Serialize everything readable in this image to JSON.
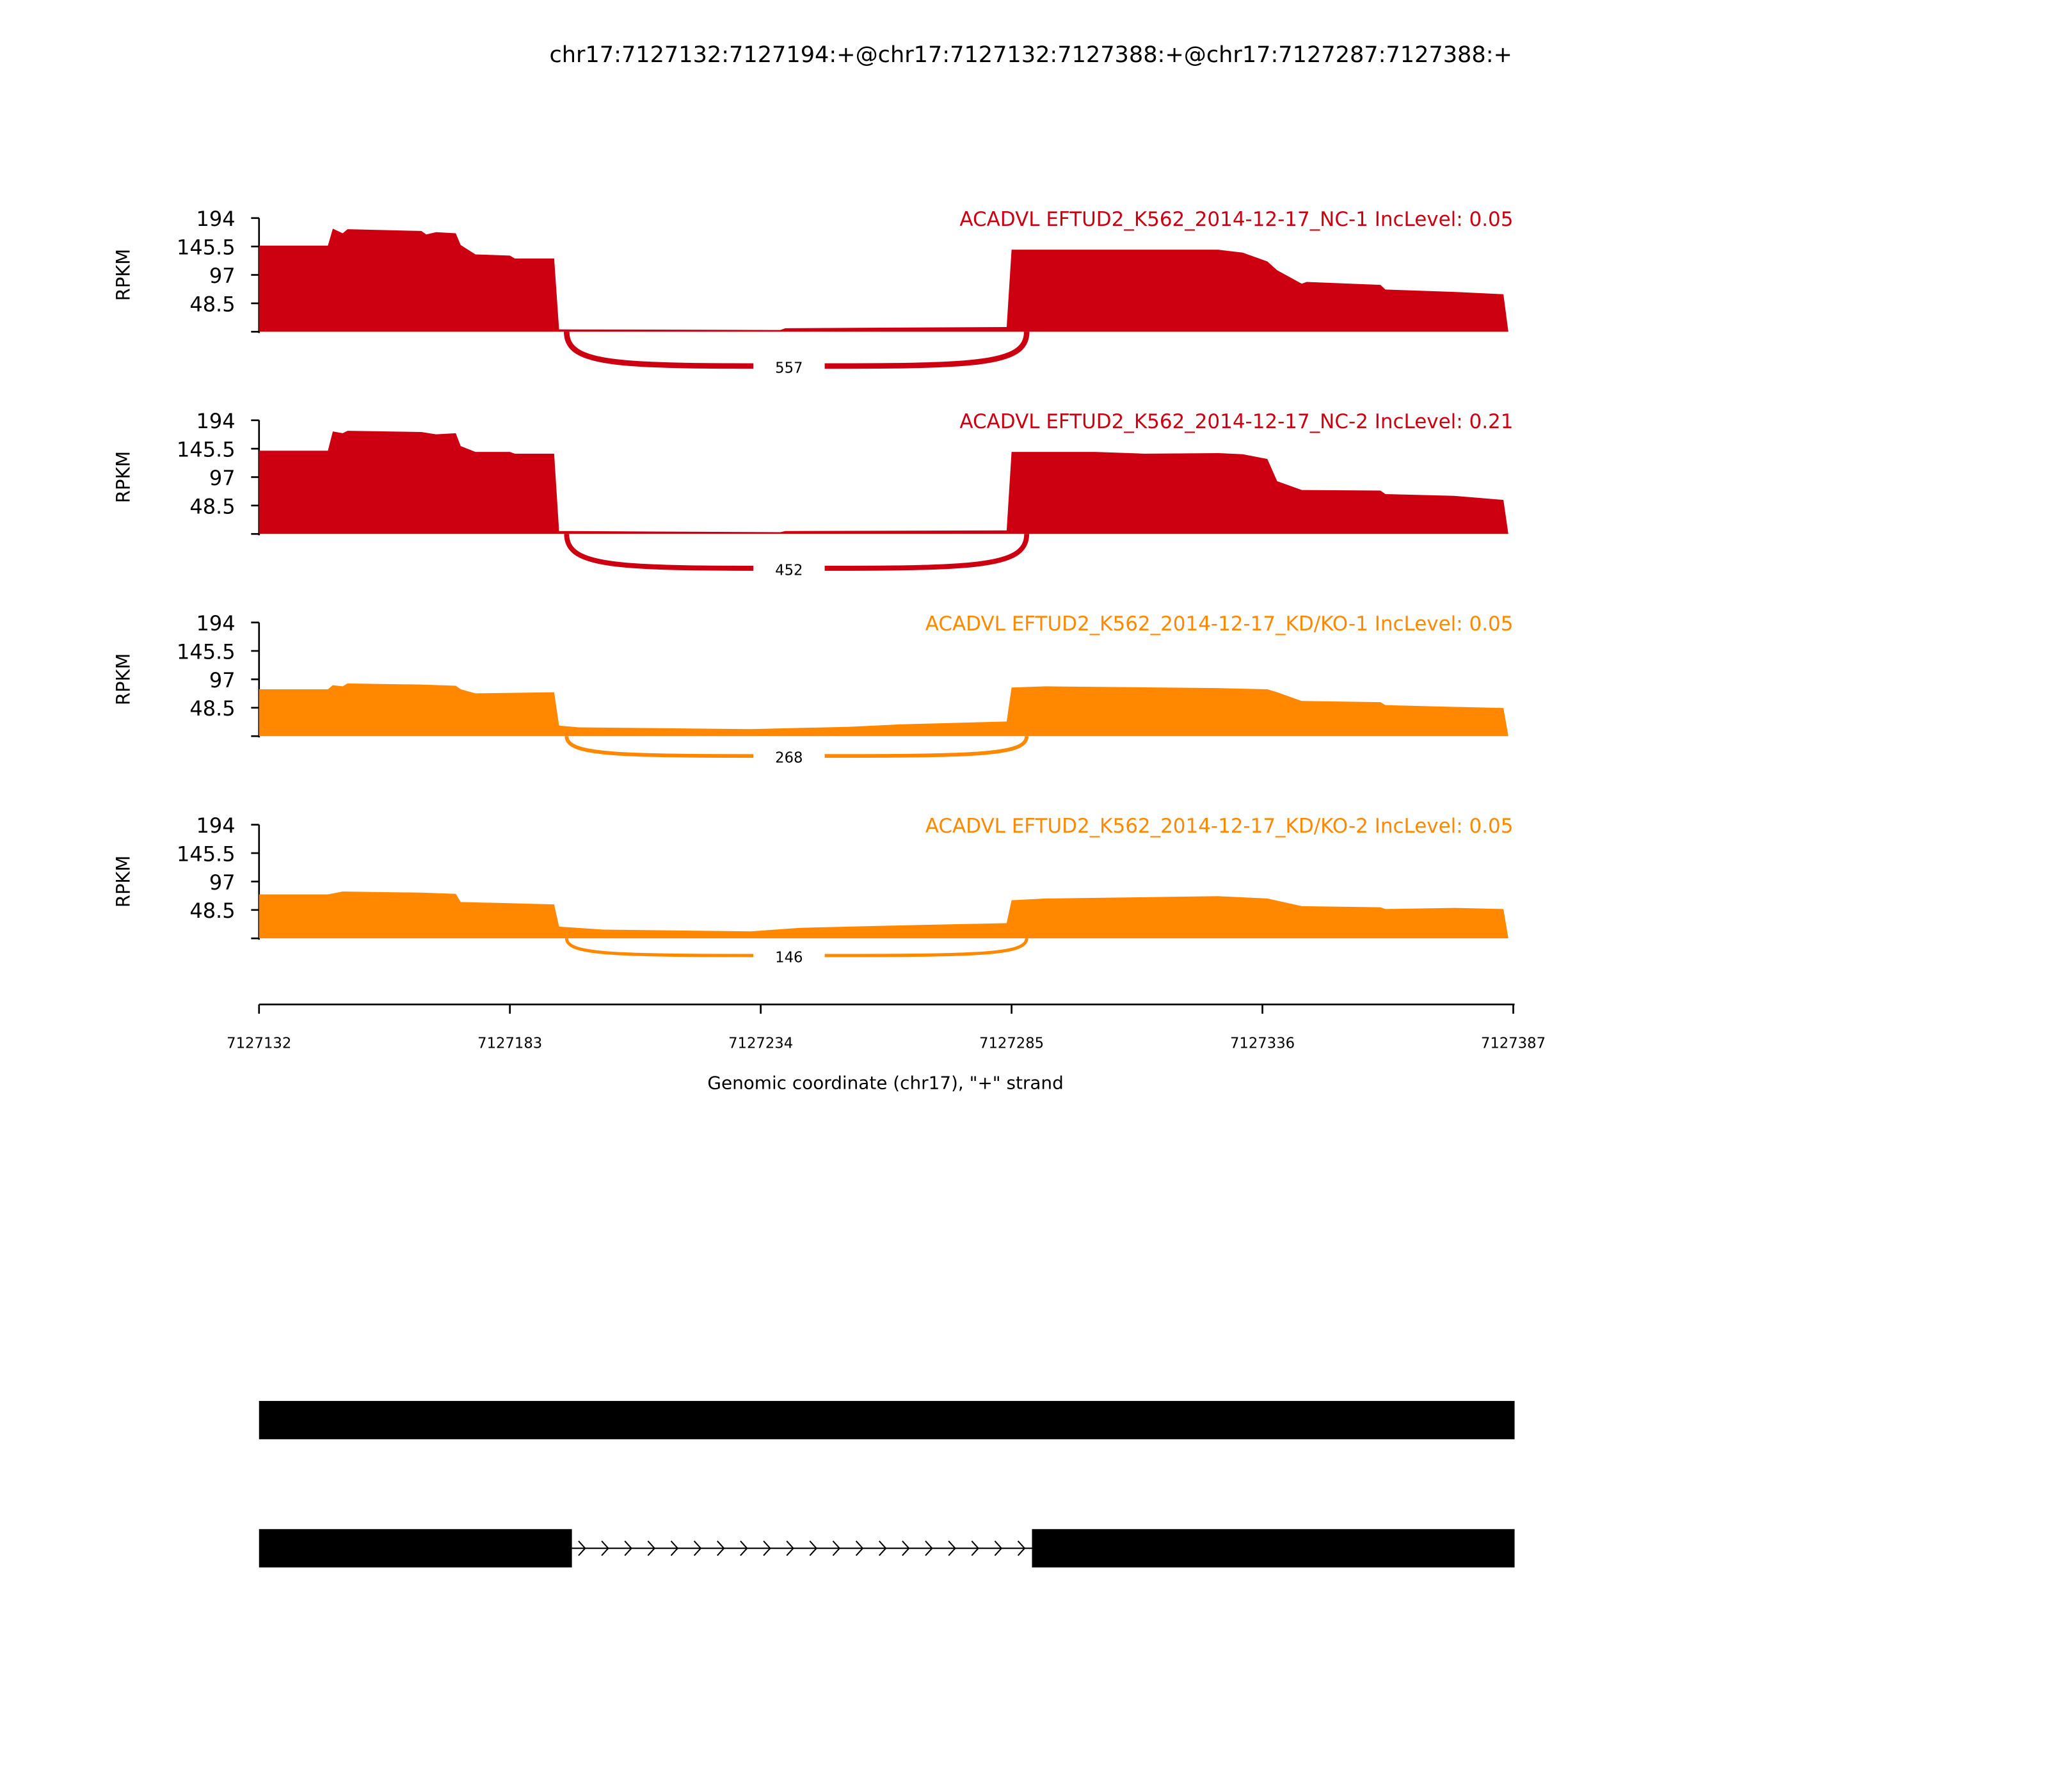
{
  "chart_data": {
    "type": "area",
    "title": "chr17:7127132:7127194:+@chr17:7127132:7127388:+@chr17:7127287:7127388:+",
    "xlabel": "Genomic coordinate (chr17), \"+\" strand",
    "ylabel": "RPKM",
    "xlim": [
      7127132,
      7127387
    ],
    "x_ticks": [
      "7127132",
      "7127183",
      "7127234",
      "7127285",
      "7127336",
      "7127387"
    ],
    "y_ticks": [
      "194",
      "145.5",
      "97",
      "48.5"
    ],
    "ylim": [
      0,
      194
    ],
    "series": [
      {
        "name": "ACADVL EFTUD2_K562_2014-12-17_NC-1 IncLevel: 0.05",
        "color": "#CC0011",
        "junction": {
          "start": 7127194,
          "end": 7127287,
          "count": "557"
        },
        "coverage": [
          [
            0,
            147
          ],
          [
            14,
            147
          ],
          [
            15,
            176
          ],
          [
            17,
            168
          ],
          [
            18,
            175
          ],
          [
            33,
            172
          ],
          [
            34,
            166
          ],
          [
            36,
            170
          ],
          [
            40,
            168
          ],
          [
            41,
            148
          ],
          [
            44,
            132
          ],
          [
            51,
            130
          ],
          [
            52,
            125
          ],
          [
            60,
            125
          ],
          [
            61,
            4
          ],
          [
            106,
            3
          ],
          [
            107,
            6
          ],
          [
            152,
            8
          ],
          [
            153,
            140
          ],
          [
            195,
            140
          ],
          [
            200,
            135
          ],
          [
            205,
            120
          ],
          [
            207,
            105
          ],
          [
            212,
            82
          ],
          [
            213,
            85
          ],
          [
            228,
            80
          ],
          [
            229,
            72
          ],
          [
            243,
            68
          ],
          [
            253,
            64
          ]
        ]
      },
      {
        "name": "ACADVL EFTUD2_K562_2014-12-17_NC-2 IncLevel: 0.21",
        "color": "#CC0011",
        "junction": {
          "start": 7127194,
          "end": 7127287,
          "count": "452"
        },
        "coverage": [
          [
            0,
            142
          ],
          [
            14,
            142
          ],
          [
            15,
            175
          ],
          [
            17,
            172
          ],
          [
            18,
            176
          ],
          [
            33,
            174
          ],
          [
            36,
            170
          ],
          [
            40,
            172
          ],
          [
            41,
            150
          ],
          [
            44,
            140
          ],
          [
            51,
            140
          ],
          [
            52,
            137
          ],
          [
            60,
            137
          ],
          [
            61,
            5
          ],
          [
            106,
            3
          ],
          [
            107,
            5
          ],
          [
            152,
            6
          ],
          [
            153,
            140
          ],
          [
            170,
            140
          ],
          [
            180,
            137
          ],
          [
            195,
            138
          ],
          [
            200,
            136
          ],
          [
            205,
            128
          ],
          [
            207,
            90
          ],
          [
            212,
            75
          ],
          [
            228,
            74
          ],
          [
            229,
            68
          ],
          [
            243,
            65
          ],
          [
            253,
            58
          ]
        ]
      },
      {
        "name": "ACADVL EFTUD2_K562_2014-12-17_KD/KO-1 IncLevel: 0.05",
        "color": "#FF8800",
        "junction": {
          "start": 7127194,
          "end": 7127287,
          "count": "268"
        },
        "coverage": [
          [
            0,
            80
          ],
          [
            14,
            80
          ],
          [
            15,
            87
          ],
          [
            17,
            85
          ],
          [
            18,
            90
          ],
          [
            33,
            88
          ],
          [
            40,
            86
          ],
          [
            41,
            80
          ],
          [
            44,
            73
          ],
          [
            60,
            75
          ],
          [
            61,
            18
          ],
          [
            65,
            15
          ],
          [
            100,
            12
          ],
          [
            120,
            16
          ],
          [
            130,
            20
          ],
          [
            152,
            25
          ],
          [
            153,
            83
          ],
          [
            160,
            85
          ],
          [
            195,
            82
          ],
          [
            205,
            80
          ],
          [
            207,
            75
          ],
          [
            212,
            60
          ],
          [
            228,
            58
          ],
          [
            229,
            53
          ],
          [
            243,
            50
          ],
          [
            253,
            48
          ]
        ]
      },
      {
        "name": "ACADVL EFTUD2_K562_2014-12-17_KD/KO-2 IncLevel: 0.05",
        "color": "#FF8800",
        "junction": {
          "start": 7127194,
          "end": 7127287,
          "count": "146"
        },
        "coverage": [
          [
            0,
            75
          ],
          [
            14,
            75
          ],
          [
            17,
            80
          ],
          [
            33,
            78
          ],
          [
            40,
            76
          ],
          [
            41,
            62
          ],
          [
            51,
            60
          ],
          [
            60,
            58
          ],
          [
            61,
            20
          ],
          [
            70,
            15
          ],
          [
            100,
            12
          ],
          [
            110,
            18
          ],
          [
            130,
            22
          ],
          [
            152,
            26
          ],
          [
            153,
            65
          ],
          [
            160,
            68
          ],
          [
            195,
            72
          ],
          [
            205,
            68
          ],
          [
            212,
            55
          ],
          [
            228,
            53
          ],
          [
            229,
            50
          ],
          [
            243,
            52
          ],
          [
            253,
            50
          ]
        ]
      }
    ],
    "transcripts": [
      {
        "exons": [
          [
            7127132,
            7127387
          ]
        ]
      },
      {
        "exons": [
          [
            7127132,
            7127194
          ],
          [
            7127287,
            7127387
          ]
        ]
      }
    ]
  }
}
